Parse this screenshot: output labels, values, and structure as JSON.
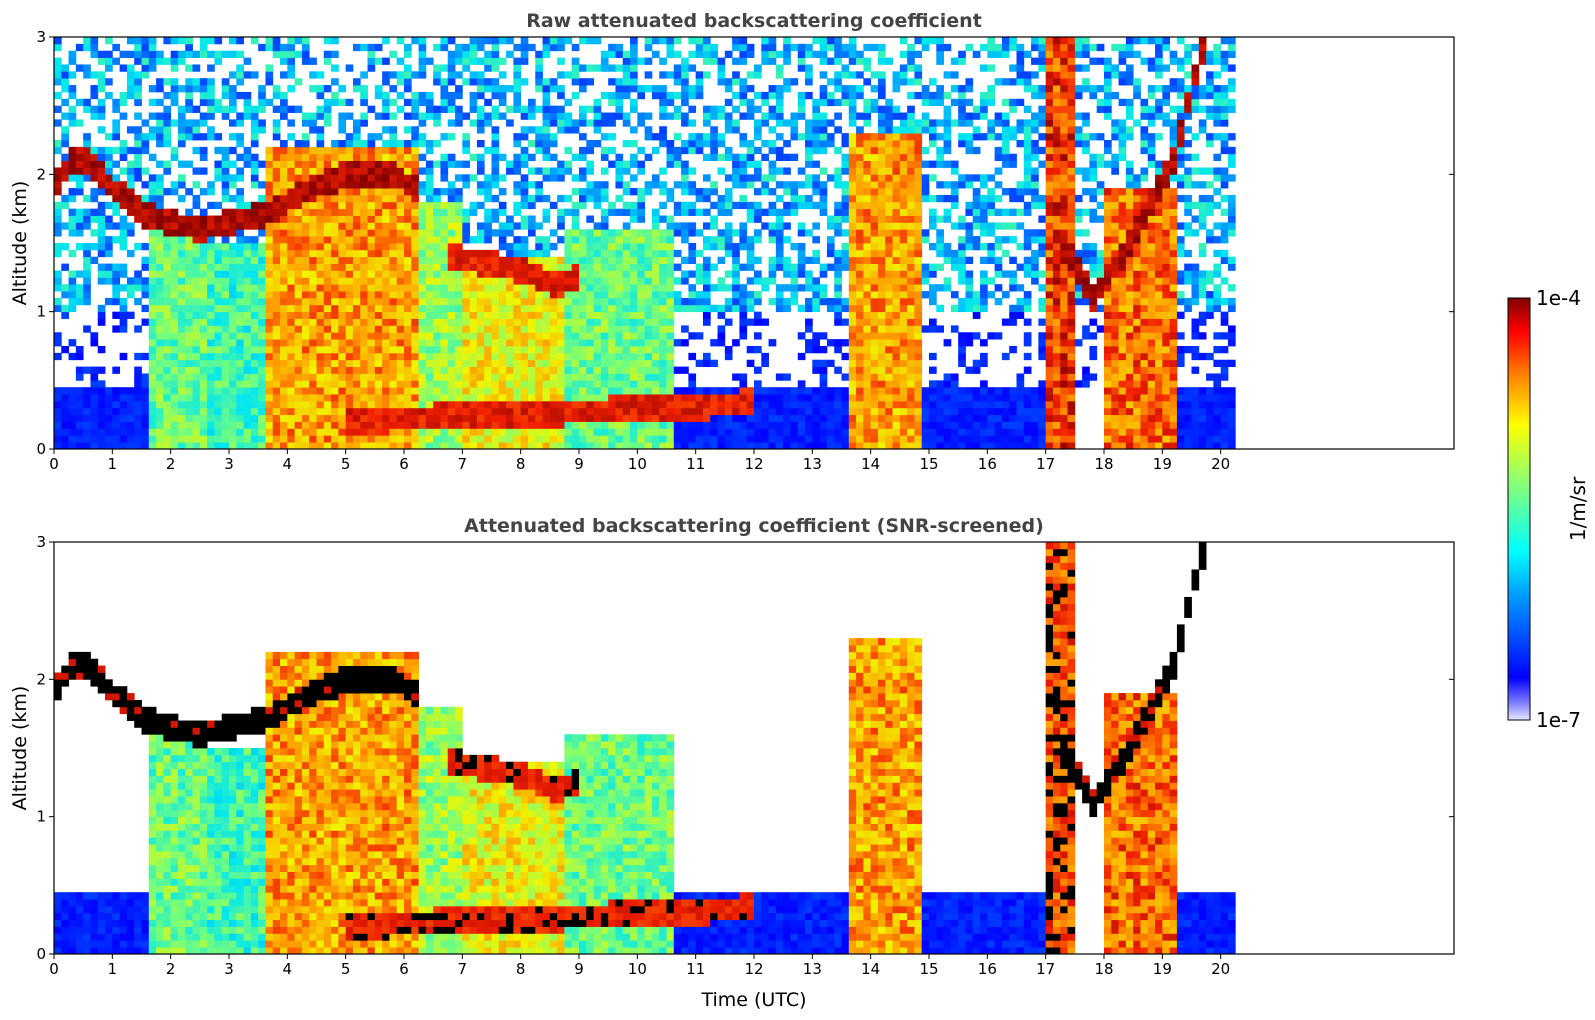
{
  "chart_data": [
    {
      "type": "heatmap",
      "title": "Raw attenuated backscattering coefficient",
      "xlabel": "",
      "ylabel": "Altitude (km)",
      "xlim": [
        0,
        24
      ],
      "ylim": [
        0,
        3
      ],
      "data_extent_x": [
        0,
        20.25
      ],
      "x_ticks": [
        "0",
        "1",
        "2",
        "3",
        "4",
        "5",
        "6",
        "7",
        "8",
        "9",
        "10",
        "11",
        "12",
        "13",
        "14",
        "15",
        "16",
        "17",
        "18",
        "19",
        "20"
      ],
      "y_ticks": [
        "0",
        "1",
        "2",
        "3"
      ],
      "layers": [
        {
          "name": "cloud layer",
          "points": [
            [
              0,
              1.9
            ],
            [
              0.3,
              2.1
            ],
            [
              0.6,
              2.1
            ],
            [
              1,
              1.9
            ],
            [
              1.6,
              1.7
            ],
            [
              2.5,
              1.6
            ],
            [
              3,
              1.65
            ],
            [
              3.6,
              1.7
            ],
            [
              4.2,
              1.85
            ],
            [
              5,
              2.0
            ],
            [
              5.8,
              2.0
            ],
            [
              6.2,
              1.9
            ]
          ],
          "level": 1.0
        },
        {
          "name": "mid cloud",
          "points": [
            [
              6.8,
              1.4
            ],
            [
              7.5,
              1.35
            ],
            [
              8,
              1.3
            ],
            [
              8.6,
              1.2
            ],
            [
              9,
              1.25
            ]
          ],
          "level": 0.95
        },
        {
          "name": "low cloud",
          "points": [
            [
              5,
              0.2
            ],
            [
              6,
              0.22
            ],
            [
              7,
              0.25
            ],
            [
              8,
              0.25
            ],
            [
              9,
              0.27
            ],
            [
              10,
              0.3
            ],
            [
              11,
              0.3
            ],
            [
              12,
              0.35
            ]
          ],
          "level": 0.95
        },
        {
          "name": "rising layer",
          "points": [
            [
              17.2,
              1.6
            ],
            [
              17.8,
              1.1
            ],
            [
              18.3,
              1.4
            ],
            [
              18.8,
              1.8
            ],
            [
              19.2,
              2.1
            ],
            [
              19.6,
              2.8
            ],
            [
              19.8,
              3.0
            ]
          ],
          "level": 1.0
        }
      ],
      "columns": [
        {
          "x": [
            1.65,
            2.6
          ],
          "top": 1.6,
          "level": 0.55
        },
        {
          "x": [
            2.6,
            3.6
          ],
          "top": 1.5,
          "level": 0.5
        },
        {
          "x": [
            3.6,
            6.2
          ],
          "top": 2.2,
          "level": 0.8
        },
        {
          "x": [
            6.2,
            7.0
          ],
          "top": 1.8,
          "level": 0.6
        },
        {
          "x": [
            7.0,
            8.8
          ],
          "top": 1.4,
          "level": 0.7
        },
        {
          "x": [
            8.8,
            10.6
          ],
          "top": 1.6,
          "level": 0.55
        },
        {
          "x": [
            13.6,
            14.9
          ],
          "top": 2.3,
          "level": 0.8
        },
        {
          "x": [
            17.0,
            17.5
          ],
          "top": 3.0,
          "level": 0.9
        },
        {
          "x": [
            18.0,
            19.3
          ],
          "top": 1.9,
          "level": 0.85
        }
      ],
      "colorbar": {
        "max_label": "1e-4",
        "min_label": "1e-7",
        "unit": "1/m/sr",
        "colormap": "jet"
      }
    },
    {
      "type": "heatmap",
      "title": "Attenuated backscattering coefficient (SNR-screened)",
      "xlabel": "Time (UTC)",
      "ylabel": "Altitude (km)",
      "xlim": [
        0,
        24
      ],
      "ylim": [
        0,
        3
      ],
      "data_extent_x": [
        0,
        20.25
      ],
      "x_ticks": [
        "0",
        "1",
        "2",
        "3",
        "4",
        "5",
        "6",
        "7",
        "8",
        "9",
        "10",
        "11",
        "12",
        "13",
        "14",
        "15",
        "16",
        "17",
        "18",
        "19",
        "20"
      ],
      "y_ticks": [
        "0",
        "1",
        "2",
        "3"
      ],
      "screened": true
    }
  ],
  "colors": {
    "jet": [
      "#00007f",
      "#0000ff",
      "#007fff",
      "#00ffff",
      "#7fff7f",
      "#ffff00",
      "#ff7f00",
      "#ff0000",
      "#7f0000"
    ],
    "screened_low": "#000000"
  }
}
